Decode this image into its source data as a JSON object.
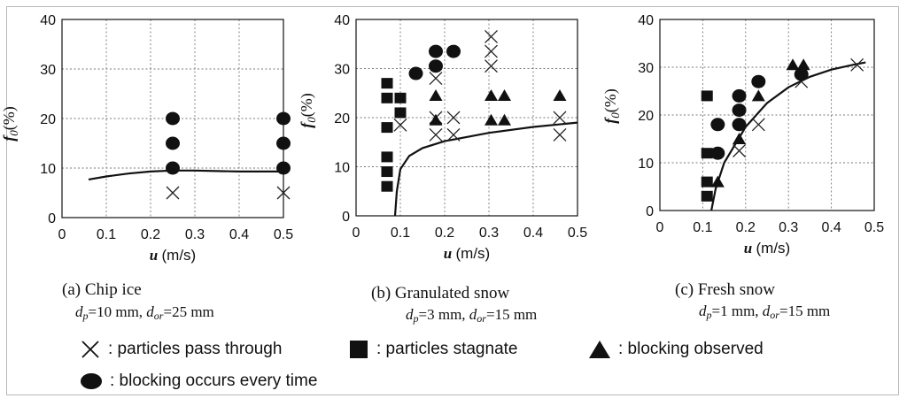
{
  "chart_data": [
    {
      "type": "scatter",
      "panel": "a",
      "caption": "(a) Chip ice",
      "dp_value": "10 mm",
      "dor_value": "25 mm",
      "xlabel": "u (m/s)",
      "ylabel": "f0 (%)",
      "xlim": [
        0,
        0.5
      ],
      "ylim": [
        0,
        40
      ],
      "xticks": [
        "0",
        "0.1",
        "0.2",
        "0.3",
        "0.4",
        "0.5"
      ],
      "yticks": [
        "0",
        "10",
        "20",
        "30",
        "40"
      ],
      "series": [
        {
          "name": "particles pass through",
          "marker": "cross",
          "points": [
            [
              0.25,
              5
            ],
            [
              0.5,
              5
            ]
          ]
        },
        {
          "name": "blocking occurs every time",
          "marker": "circle",
          "points": [
            [
              0.25,
              10
            ],
            [
              0.25,
              15
            ],
            [
              0.25,
              20
            ],
            [
              0.5,
              10
            ],
            [
              0.5,
              15
            ],
            [
              0.5,
              20
            ]
          ]
        }
      ],
      "curve": [
        [
          0.06,
          7.7
        ],
        [
          0.1,
          8.3
        ],
        [
          0.15,
          8.9
        ],
        [
          0.2,
          9.3
        ],
        [
          0.25,
          9.5
        ],
        [
          0.3,
          9.5
        ],
        [
          0.35,
          9.4
        ],
        [
          0.4,
          9.3
        ],
        [
          0.45,
          9.3
        ],
        [
          0.5,
          9.3
        ]
      ]
    },
    {
      "type": "scatter",
      "panel": "b",
      "caption": "(b) Granulated snow",
      "dp_value": "3 mm",
      "dor_value": "15 mm",
      "xlabel": "u (m/s)",
      "ylabel": "f0 (%)",
      "xlim": [
        0,
        0.5
      ],
      "ylim": [
        0,
        40
      ],
      "xticks": [
        "0",
        "0.1",
        "0.2",
        "0.3",
        "0.4",
        "0.5"
      ],
      "yticks": [
        "0",
        "10",
        "20",
        "30",
        "40"
      ],
      "series": [
        {
          "name": "particles pass through",
          "marker": "cross",
          "points": [
            [
              0.1,
              18.5
            ],
            [
              0.18,
              16.5
            ],
            [
              0.18,
              20
            ],
            [
              0.18,
              28
            ],
            [
              0.22,
              16.5
            ],
            [
              0.22,
              20
            ],
            [
              0.305,
              30.5
            ],
            [
              0.305,
              33.5
            ],
            [
              0.305,
              36.5
            ],
            [
              0.46,
              16.5
            ],
            [
              0.46,
              20
            ]
          ]
        },
        {
          "name": "particles stagnate",
          "marker": "square",
          "points": [
            [
              0.07,
              6
            ],
            [
              0.07,
              9
            ],
            [
              0.07,
              12
            ],
            [
              0.07,
              18
            ],
            [
              0.07,
              24
            ],
            [
              0.07,
              27
            ],
            [
              0.1,
              21
            ],
            [
              0.1,
              24
            ]
          ]
        },
        {
          "name": "blocking observed",
          "marker": "triangle",
          "points": [
            [
              0.18,
              24.5
            ],
            [
              0.18,
              19.5
            ],
            [
              0.305,
              19.5
            ],
            [
              0.305,
              24.5
            ],
            [
              0.335,
              19.5
            ],
            [
              0.335,
              24.5
            ],
            [
              0.46,
              24.5
            ]
          ]
        },
        {
          "name": "blocking occurs every time",
          "marker": "circle",
          "points": [
            [
              0.135,
              29
            ],
            [
              0.18,
              30.5
            ],
            [
              0.18,
              33.5
            ],
            [
              0.22,
              33.5
            ]
          ]
        }
      ],
      "curve": [
        [
          0.088,
          0
        ],
        [
          0.092,
          5
        ],
        [
          0.1,
          9.5
        ],
        [
          0.12,
          12.2
        ],
        [
          0.15,
          13.8
        ],
        [
          0.2,
          15.2
        ],
        [
          0.3,
          16.9
        ],
        [
          0.4,
          18.1
        ],
        [
          0.5,
          19
        ]
      ]
    },
    {
      "type": "scatter",
      "panel": "c",
      "caption": "(c) Fresh snow",
      "dp_value": "1 mm",
      "dor_value": "15 mm",
      "xlabel": "u (m/s)",
      "ylabel": "f0 (%)",
      "xlim": [
        0,
        0.5
      ],
      "ylim": [
        0,
        40
      ],
      "xticks": [
        "0",
        "0.1",
        "0.2",
        "0.3",
        "0.4",
        "0.5"
      ],
      "yticks": [
        "0",
        "10",
        "20",
        "30",
        "40"
      ],
      "series": [
        {
          "name": "particles pass through",
          "marker": "cross",
          "points": [
            [
              0.185,
              12.5
            ],
            [
              0.23,
              18
            ],
            [
              0.33,
              27
            ],
            [
              0.46,
              30.5
            ]
          ]
        },
        {
          "name": "particles stagnate",
          "marker": "square",
          "points": [
            [
              0.11,
              3
            ],
            [
              0.11,
              6
            ],
            [
              0.11,
              12
            ],
            [
              0.11,
              24
            ]
          ]
        },
        {
          "name": "blocking observed",
          "marker": "triangle",
          "points": [
            [
              0.135,
              6
            ],
            [
              0.185,
              15
            ],
            [
              0.23,
              24
            ],
            [
              0.31,
              30.5
            ],
            [
              0.335,
              30.5
            ]
          ]
        },
        {
          "name": "blocking occurs every time",
          "marker": "circle",
          "points": [
            [
              0.135,
              12
            ],
            [
              0.135,
              18
            ],
            [
              0.185,
              18
            ],
            [
              0.185,
              21
            ],
            [
              0.185,
              24
            ],
            [
              0.23,
              27
            ],
            [
              0.33,
              28.5
            ]
          ]
        }
      ],
      "curve": [
        [
          0.12,
          0
        ],
        [
          0.13,
          4.5
        ],
        [
          0.15,
          10
        ],
        [
          0.2,
          17.5
        ],
        [
          0.25,
          22.5
        ],
        [
          0.3,
          25.8
        ],
        [
          0.35,
          28
        ],
        [
          0.4,
          29.5
        ],
        [
          0.45,
          30.5
        ],
        [
          0.48,
          31
        ]
      ]
    }
  ],
  "labels": {
    "dp_prefix": "d",
    "dp_sub": "p",
    "dor_prefix": "d",
    "dor_sub": "or",
    "separator": ", ",
    "equals": "="
  },
  "legend": {
    "cross": ": particles pass through",
    "square": ": particles stagnate",
    "triangle": ": blocking observed",
    "circle": ": blocking occurs every time"
  }
}
